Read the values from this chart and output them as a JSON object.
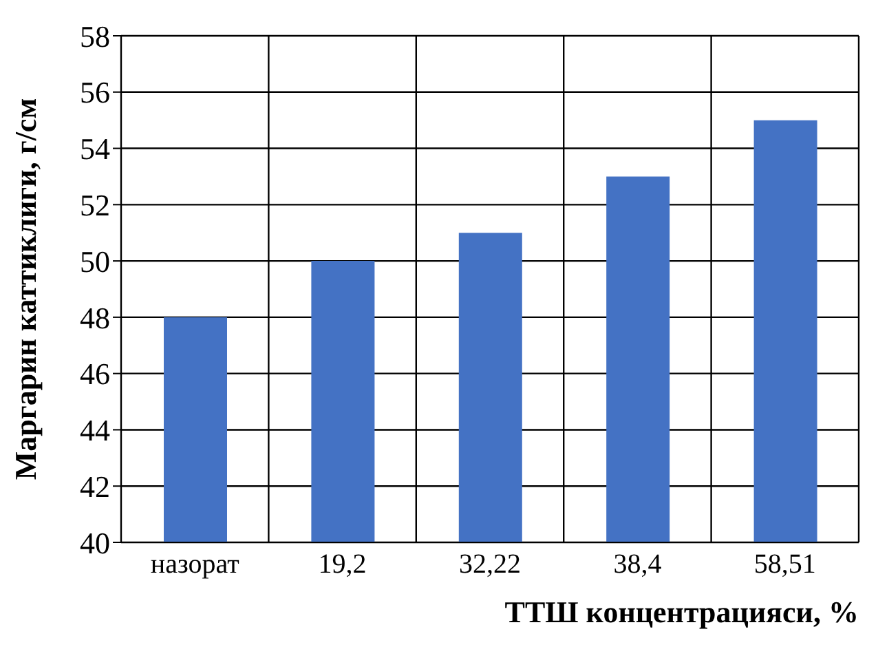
{
  "chart_data": {
    "type": "bar",
    "xlabel": "ТТШ концентрацияси, %",
    "ylabel": "Маргарин каттиклиги, г/см",
    "categories": [
      "назорат",
      "19,2",
      "32,22",
      "38,4",
      "58,51"
    ],
    "values": [
      48,
      50,
      51,
      53,
      55
    ],
    "color": "#4472c4",
    "ylim": [
      40,
      58
    ],
    "yticks": [
      40,
      42,
      44,
      46,
      48,
      50,
      52,
      54,
      56,
      58
    ],
    "grid": true
  }
}
